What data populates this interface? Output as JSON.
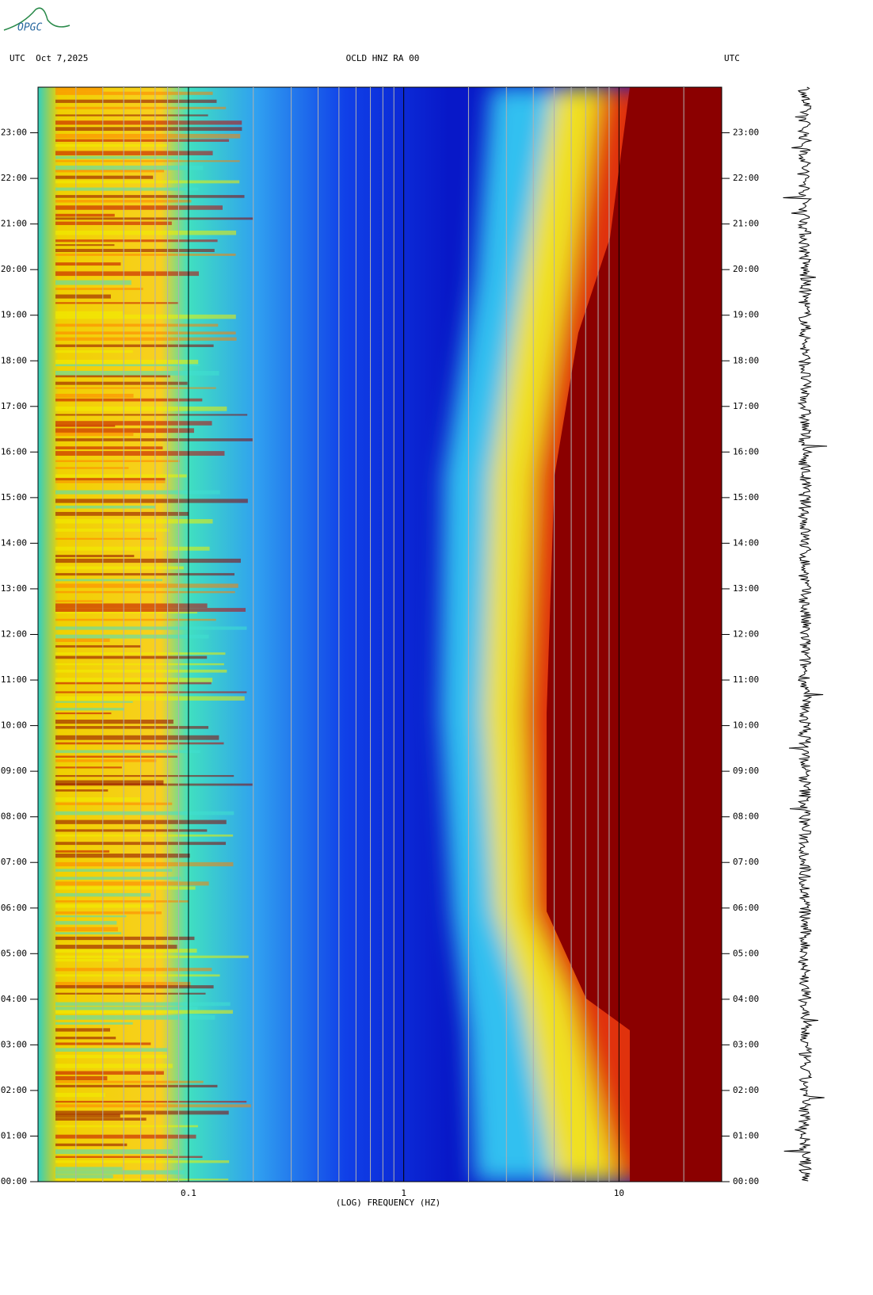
{
  "chart_data": {
    "type": "spectrogram",
    "logo": "OPGC",
    "title": "OCLD HNZ RA 00",
    "left_header": "UTC  Oct 7,2025",
    "right_header": "UTC",
    "xlabel": "(LOG) FREQUENCY (HZ)",
    "xscale": "log",
    "xlim": [
      0.02,
      30
    ],
    "xticks": [
      0.1,
      1,
      10
    ],
    "xminorticks": [
      0.03,
      0.04,
      0.05,
      0.06,
      0.07,
      0.08,
      0.09,
      0.2,
      0.3,
      0.4,
      0.5,
      0.6,
      0.7,
      0.8,
      0.9,
      2,
      3,
      4,
      5,
      6,
      7,
      8,
      9,
      20
    ],
    "ylim": [
      0,
      24
    ],
    "yticks": [
      {
        "value": 0,
        "label": "00:00"
      },
      {
        "value": 1,
        "label": "01:00"
      },
      {
        "value": 2,
        "label": "02:00"
      },
      {
        "value": 3,
        "label": "03:00"
      },
      {
        "value": 4,
        "label": "04:00"
      },
      {
        "value": 5,
        "label": "05:00"
      },
      {
        "value": 6,
        "label": "06:00"
      },
      {
        "value": 7,
        "label": "07:00"
      },
      {
        "value": 8,
        "label": "08:00"
      },
      {
        "value": 9,
        "label": "09:00"
      },
      {
        "value": 10,
        "label": "10:00"
      },
      {
        "value": 11,
        "label": "11:00"
      },
      {
        "value": 12,
        "label": "12:00"
      },
      {
        "value": 13,
        "label": "13:00"
      },
      {
        "value": 14,
        "label": "14:00"
      },
      {
        "value": 15,
        "label": "15:00"
      },
      {
        "value": 16,
        "label": "16:00"
      },
      {
        "value": 17,
        "label": "17:00"
      },
      {
        "value": 18,
        "label": "18:00"
      },
      {
        "value": 19,
        "label": "19:00"
      },
      {
        "value": 20,
        "label": "20:00"
      },
      {
        "value": 21,
        "label": "21:00"
      },
      {
        "value": 22,
        "label": "22:00"
      },
      {
        "value": 23,
        "label": "23:00"
      }
    ]
  }
}
